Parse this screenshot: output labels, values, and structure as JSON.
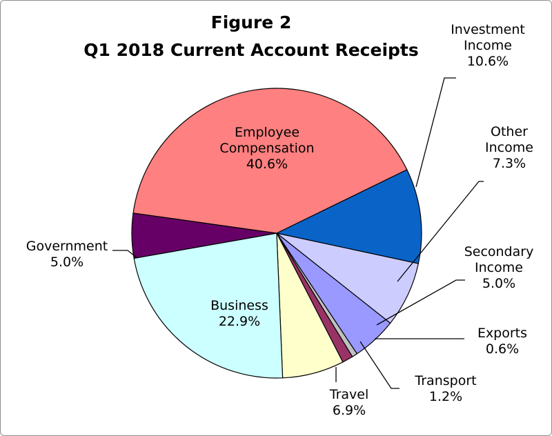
{
  "chart_data": {
    "type": "pie",
    "title": "Figure 2",
    "subtitle": "Q1 2018 Current Account Receipts",
    "slices": [
      {
        "label": [
          "Investment",
          "Income"
        ],
        "value": 10.6,
        "display": "10.6%",
        "color": "#0a64c8"
      },
      {
        "label": [
          "Other",
          "Income"
        ],
        "value": 7.3,
        "display": "7.3%",
        "color": "#ccccff"
      },
      {
        "label": [
          "Secondary",
          "Income"
        ],
        "value": 5.0,
        "display": "5.0%",
        "color": "#9999ff"
      },
      {
        "label": [
          "Exports"
        ],
        "value": 0.6,
        "display": "0.6%",
        "color": "#c0c0c0"
      },
      {
        "label": [
          "Transport"
        ],
        "value": 1.2,
        "display": "1.2%",
        "color": "#993366"
      },
      {
        "label": [
          "Travel"
        ],
        "value": 6.9,
        "display": "6.9%",
        "color": "#ffffcc"
      },
      {
        "label": [
          "Business"
        ],
        "value": 22.9,
        "display": "22.9%",
        "color": "#ccffff"
      },
      {
        "label": [
          "Government"
        ],
        "value": 5.0,
        "display": "5.0%",
        "color": "#660066"
      },
      {
        "label": [
          "Employee",
          "Compensation"
        ],
        "value": 40.6,
        "display": "40.6%",
        "color": "#ff8080"
      }
    ],
    "legend": "none"
  }
}
